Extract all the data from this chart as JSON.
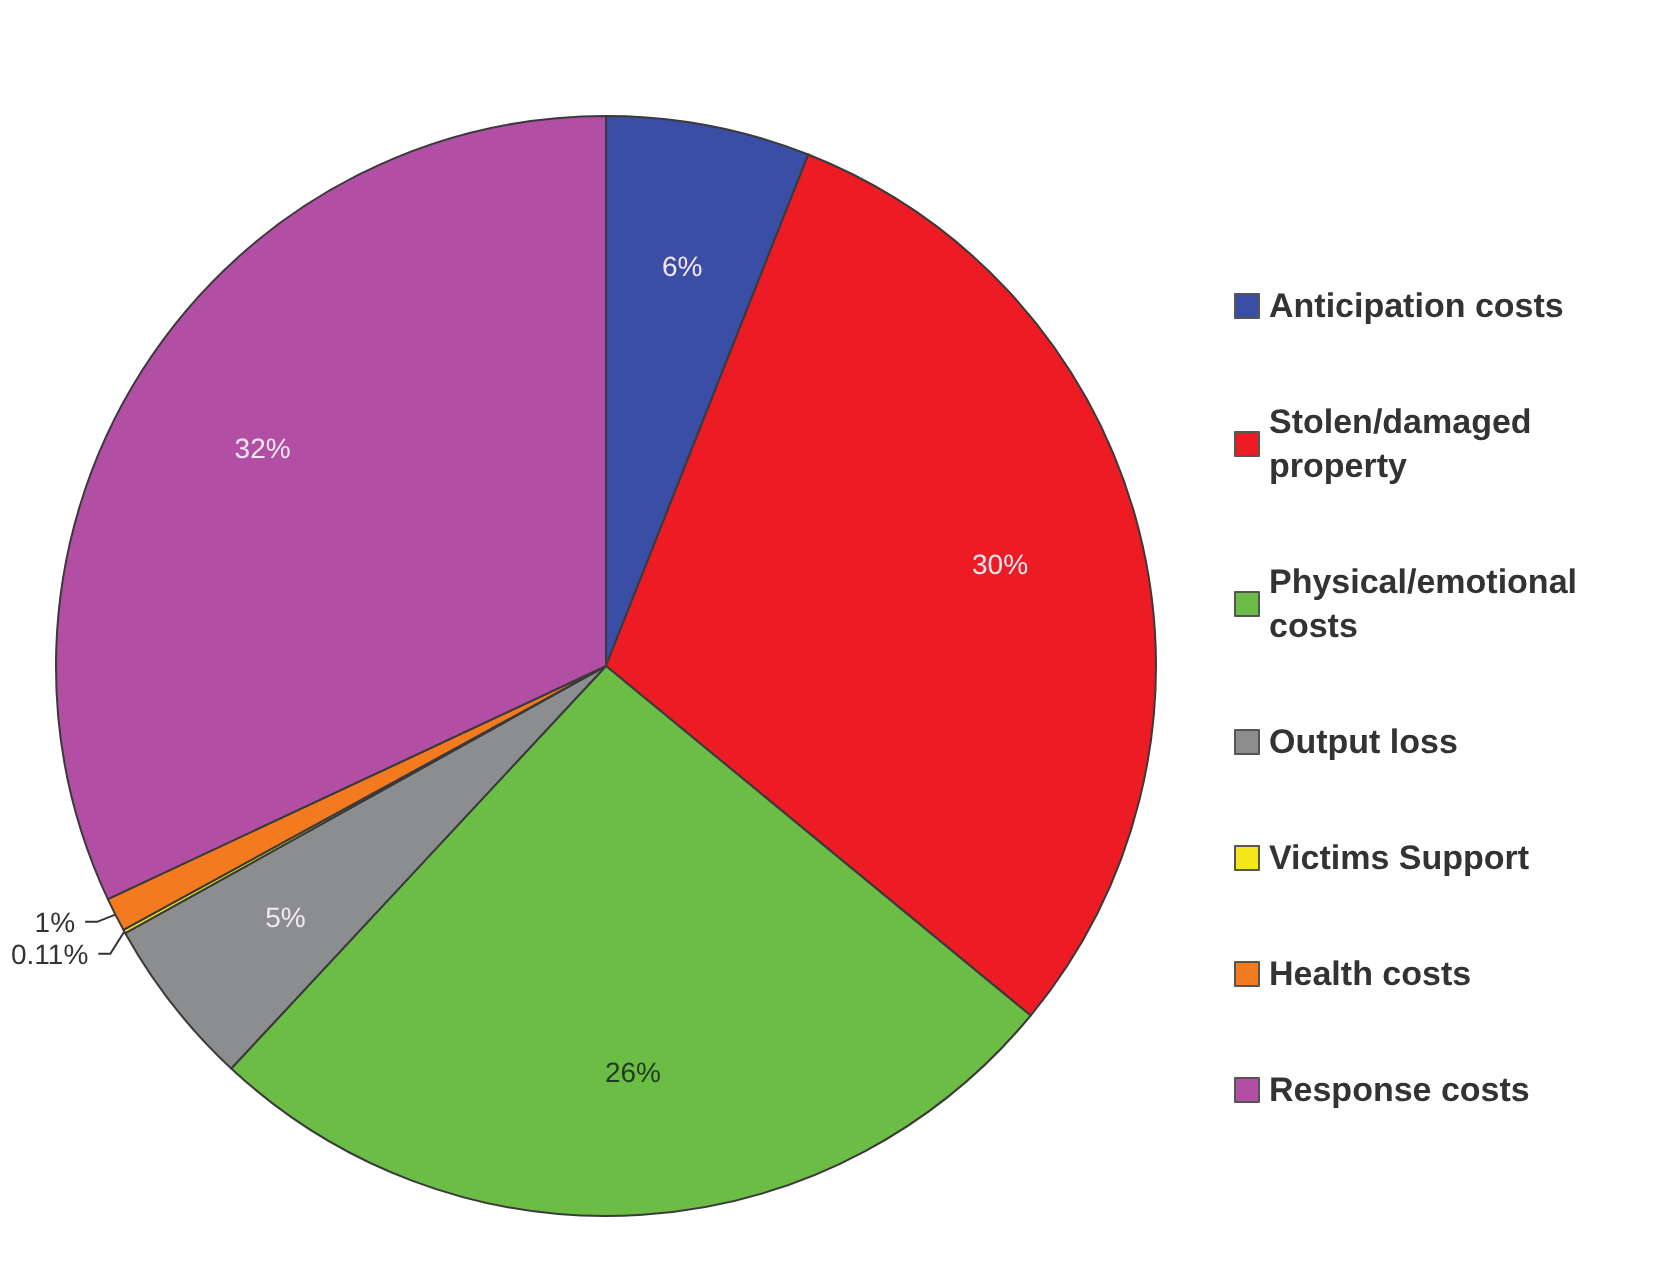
{
  "chart_data": {
    "type": "pie",
    "categories": [
      "Anticipation costs",
      "Stolen/damaged property",
      "Physical/emotional costs",
      "Output loss",
      "Victims Support",
      "Health costs",
      "Response costs"
    ],
    "values": [
      6,
      30,
      26,
      5,
      0.11,
      1,
      32
    ],
    "value_labels": [
      "6%",
      "30%",
      "26%",
      "5%",
      "0.11%",
      "1%",
      "32%"
    ],
    "colors": [
      "#3b4ea6",
      "#ed1c24",
      "#6cbd45",
      "#8b8d8f",
      "#f3e71c",
      "#f47a20",
      "#b24fa5"
    ],
    "legend": "right"
  }
}
